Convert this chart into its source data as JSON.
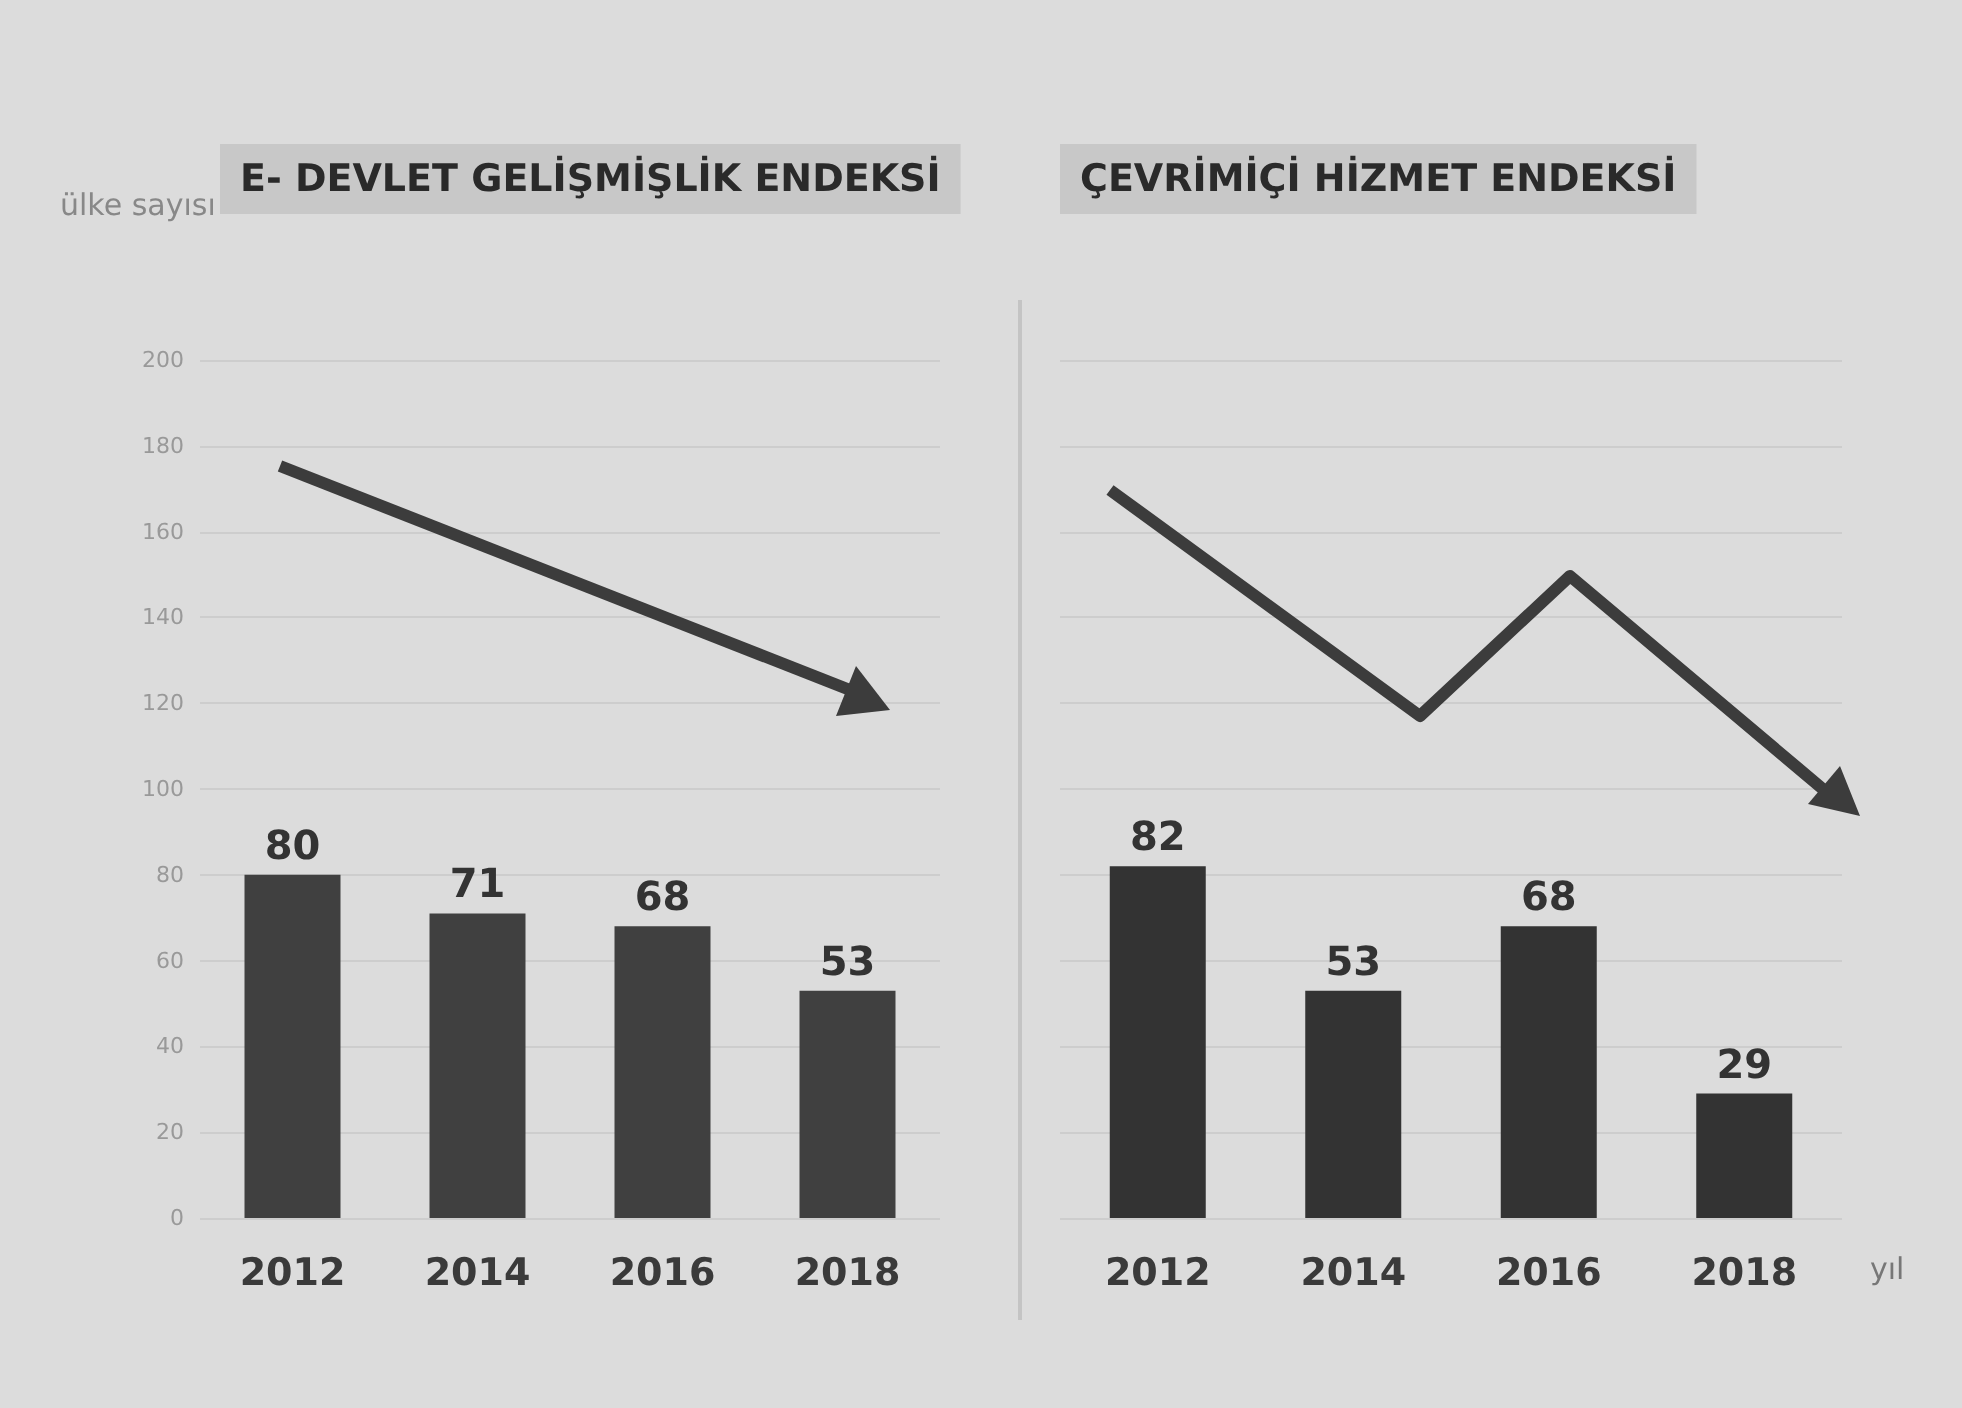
{
  "chart_data": [
    {
      "type": "bar",
      "title": "E- DEVLET GELİŞMİŞLİK ENDEKSİ",
      "ylabel": "ülke sayısı",
      "categories": [
        "2012",
        "2014",
        "2016",
        "2018"
      ],
      "values": [
        80,
        71,
        68,
        53
      ],
      "color": "#404040",
      "ylim": [
        0,
        200
      ],
      "yticks": [
        0,
        20,
        40,
        60,
        80,
        100,
        120,
        140,
        160,
        180,
        200
      ],
      "grid": "y",
      "data_labels": true
    },
    {
      "type": "bar",
      "title": "ÇEVRİMİÇİ HİZMET ENDEKSİ",
      "xlabel": "yıl",
      "categories": [
        "2012",
        "2014",
        "2016",
        "2018"
      ],
      "values": [
        82,
        53,
        68,
        29
      ],
      "color": "#333333",
      "ylim": [
        0,
        200
      ],
      "yticks": [
        0,
        20,
        40,
        60,
        80,
        100,
        120,
        140,
        160,
        180,
        200
      ],
      "grid": "y",
      "data_labels": true,
      "tick_labels": "x"
    }
  ]
}
